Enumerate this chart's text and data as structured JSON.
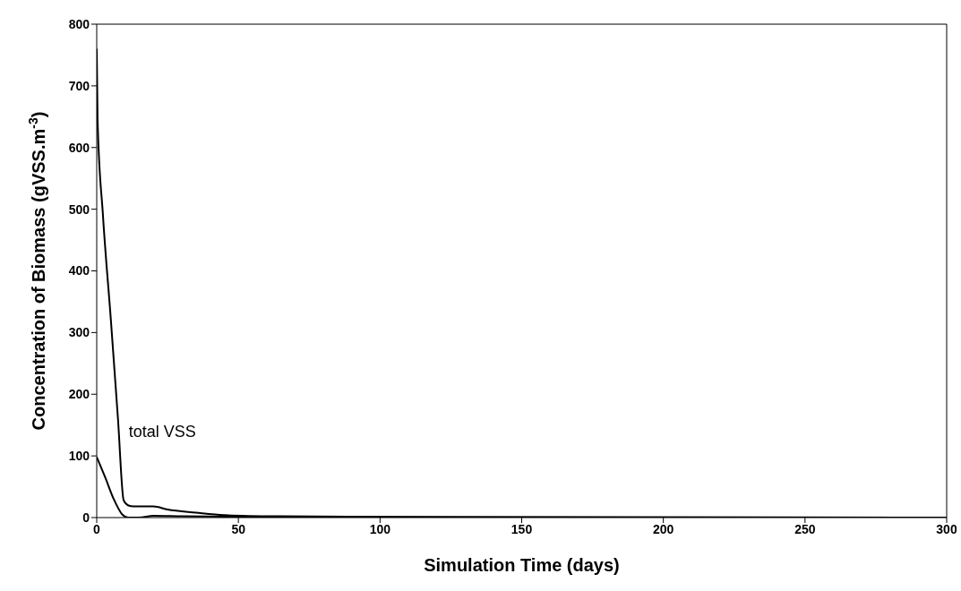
{
  "chart_data": {
    "type": "line",
    "xlabel": "Simulation Time (days)",
    "ylabel": "Concentration of Biomass (gVSS.m$^{-3}$)",
    "xlim": [
      0,
      300
    ],
    "xticks": [
      0,
      50,
      100,
      150,
      200,
      250,
      300
    ],
    "ylim": [
      0,
      800
    ],
    "yticks": [
      0,
      100,
      200,
      300,
      400,
      500,
      600,
      700,
      800
    ],
    "marker": "none",
    "line_style": "solid",
    "series": [
      {
        "name": "total VSS",
        "color": "#000000",
        "x": [
          0,
          0.3,
          2.2,
          5,
          7.5,
          9.5,
          11,
          13,
          20,
          25,
          35,
          45,
          65,
          100,
          300
        ],
        "values": [
          760,
          645,
          490,
          320,
          160,
          28,
          20,
          18,
          18,
          13,
          8,
          4,
          2,
          1,
          0
        ]
      },
      {
        "color": "#000000",
        "x": [
          0,
          3,
          6,
          9,
          11,
          15,
          20,
          30,
          60,
          300
        ],
        "values": [
          98,
          65,
          30,
          5,
          0,
          0,
          3,
          2,
          1,
          0
        ]
      }
    ]
  }
}
